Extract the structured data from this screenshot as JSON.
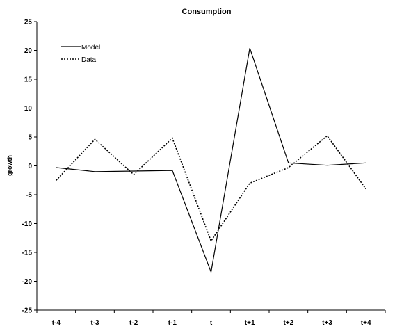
{
  "chart_data": {
    "type": "line",
    "title": "Consumption",
    "xlabel": "",
    "ylabel": "growth",
    "categories": [
      "t-4",
      "t-3",
      "t-2",
      "t-1",
      "t",
      "t+1",
      "t+2",
      "t+3",
      "t+4"
    ],
    "ylim": [
      -25,
      25
    ],
    "yticks": [
      25,
      20,
      15,
      10,
      5,
      0,
      -5,
      -10,
      -15,
      -20,
      -25
    ],
    "grid": false,
    "legend_position": "top-left",
    "series": [
      {
        "name": "Model",
        "style": "solid",
        "color": "#000000",
        "values": [
          -0.3,
          -1.0,
          -0.9,
          -0.8,
          -18.4,
          20.4,
          0.5,
          0.1,
          0.5
        ]
      },
      {
        "name": "Data",
        "style": "dotted",
        "color": "#000000",
        "values": [
          -2.5,
          4.6,
          -1.5,
          4.8,
          -13.0,
          -3.0,
          -0.3,
          5.2,
          -4.0
        ]
      }
    ]
  }
}
